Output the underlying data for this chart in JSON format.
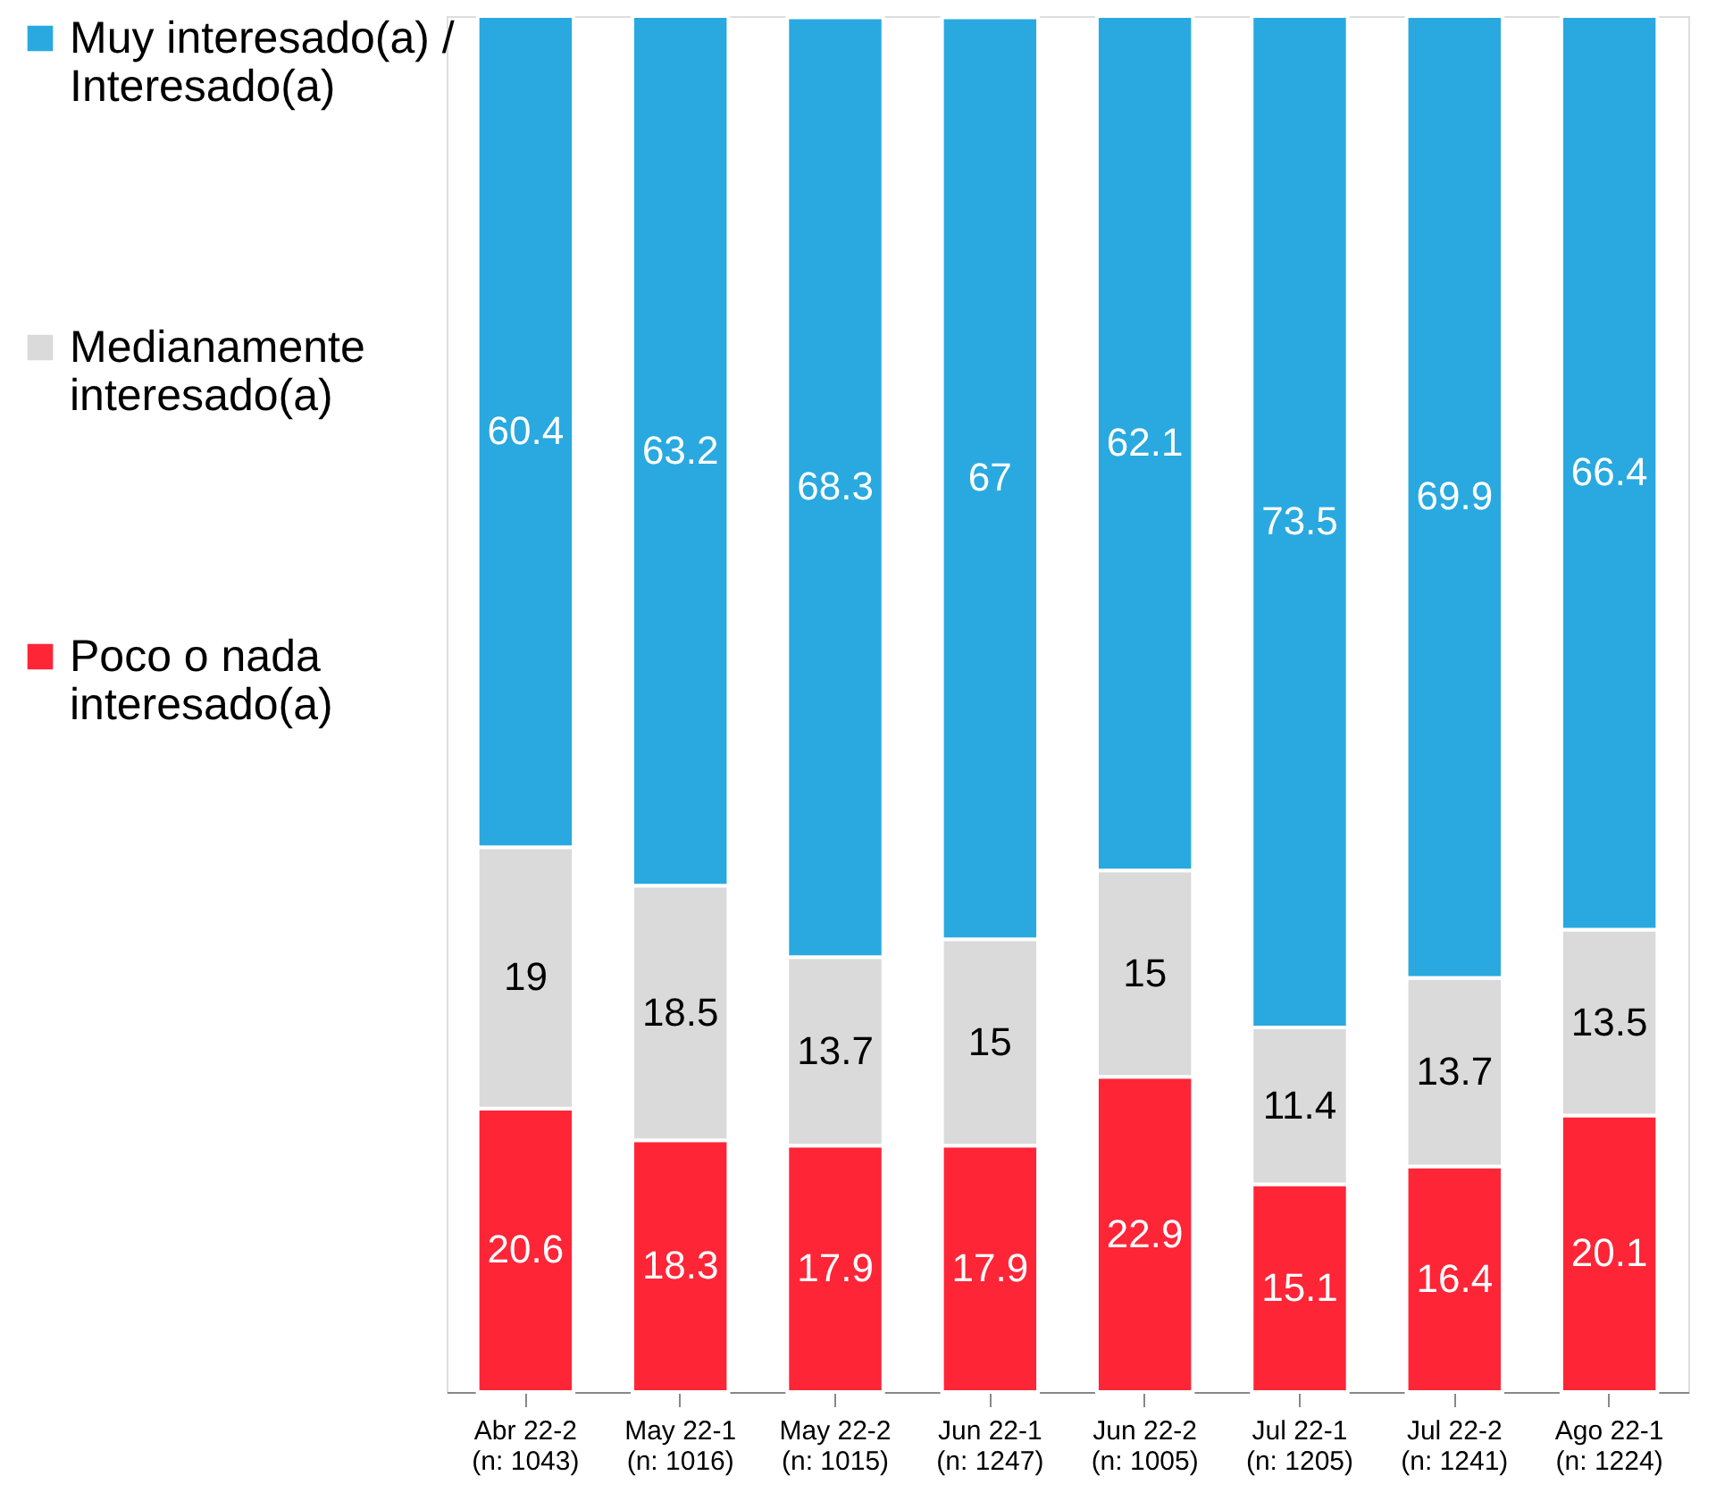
{
  "chart_data": {
    "type": "bar",
    "stacked": true,
    "data_labels": true,
    "legend": "left",
    "categories": [
      "Abr 22-2\n(n: 1043)",
      "May 22-1\n(n: 1016)",
      "May 22-2\n(n: 1015)",
      "Jun 22-1\n(n: 1247)",
      "Jun 22-2\n(n: 1005)",
      "Jul 22-1\n(n: 1205)",
      "Jul 22-2\n(n: 1241)",
      "Ago 22-1\n(n: 1224)"
    ],
    "series": [
      {
        "name": "Poco o nada\ninteresado(a)",
        "color": "#fe2537",
        "values": [
          20.6,
          18.3,
          17.9,
          17.9,
          22.9,
          15.1,
          16.4,
          20.1
        ]
      },
      {
        "name": "Medianamente\ninteresado(a)",
        "color": "#dadada",
        "values": [
          19,
          18.5,
          13.7,
          15,
          15,
          11.4,
          13.7,
          13.5
        ]
      },
      {
        "name": "Muy interesado(a) /\nInteresado(a)",
        "color": "#29a9e0",
        "values": [
          60.4,
          63.2,
          68.3,
          67,
          62.1,
          73.5,
          69.9,
          66.4
        ]
      }
    ]
  }
}
